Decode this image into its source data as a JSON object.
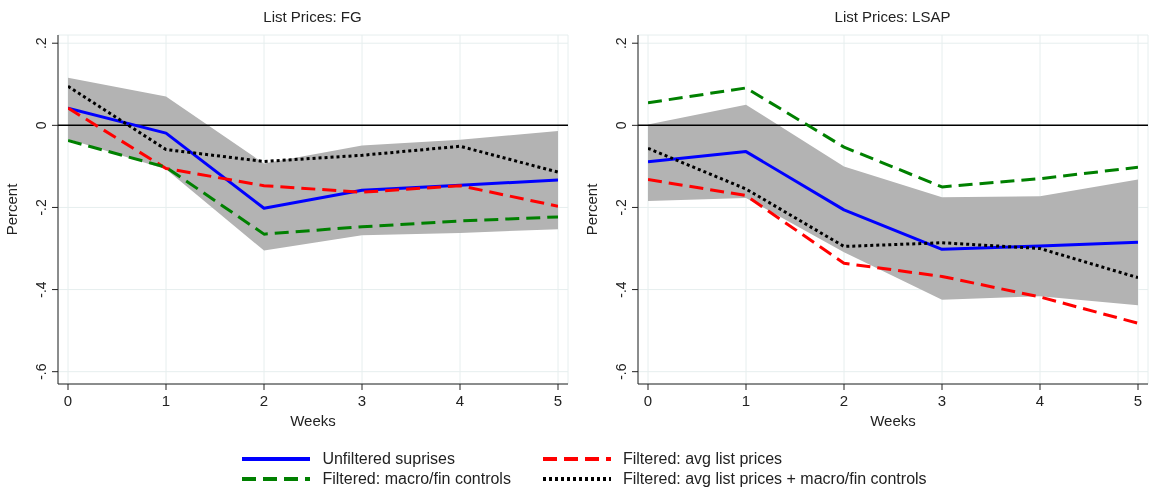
{
  "chart_data": [
    {
      "type": "line",
      "title": "List Prices: FG",
      "xlabel": "Weeks",
      "ylabel": "Percent",
      "x": [
        0,
        1,
        2,
        3,
        4,
        5
      ],
      "xlim": [
        0,
        5
      ],
      "xticks": [
        0,
        1,
        2,
        3,
        4,
        5
      ],
      "ylim": [
        -0.63,
        0.22
      ],
      "yticks": [
        {
          "value": 0.2,
          "label": ".2"
        },
        {
          "value": 0,
          "label": "0"
        },
        {
          "value": -0.2,
          "label": "-.2"
        },
        {
          "value": -0.4,
          "label": "-.4"
        },
        {
          "value": -0.6,
          "label": "-.6"
        }
      ],
      "grid": true,
      "legend": "bottom",
      "ref_lines": [
        {
          "axis": "y",
          "value": 0,
          "color": "#000000"
        }
      ],
      "series": [
        {
          "name": "Unfiltered suprises",
          "color": "#0000ff",
          "line_style": "solid",
          "values": [
            0.042,
            -0.019,
            -0.202,
            -0.158,
            -0.146,
            -0.133
          ],
          "lower": [
            -0.033,
            -0.107,
            -0.305,
            -0.268,
            -0.262,
            -0.253
          ],
          "upper": [
            0.116,
            0.07,
            -0.093,
            -0.049,
            -0.035,
            -0.014
          ]
        },
        {
          "name": "Filtered: avg list prices",
          "color": "#ff0000",
          "line_style": "dashed",
          "values": [
            0.042,
            -0.105,
            -0.147,
            -0.163,
            -0.147,
            -0.197
          ]
        },
        {
          "name": "Filtered: macro/fin controls",
          "color": "#008000",
          "line_style": "dashed",
          "values": [
            -0.037,
            -0.102,
            -0.265,
            -0.247,
            -0.233,
            -0.223
          ]
        },
        {
          "name": "Filtered: avg list prices + macro/fin controls",
          "color": "#000000",
          "line_style": "dotted",
          "values": [
            0.095,
            -0.059,
            -0.088,
            -0.073,
            -0.051,
            -0.114
          ]
        }
      ]
    },
    {
      "type": "line",
      "title": "List Prices: LSAP",
      "xlabel": "Weeks",
      "ylabel": "Percent",
      "x": [
        0,
        1,
        2,
        3,
        4,
        5
      ],
      "xlim": [
        0,
        5
      ],
      "xticks": [
        0,
        1,
        2,
        3,
        4,
        5
      ],
      "ylim": [
        -0.63,
        0.22
      ],
      "yticks": [
        {
          "value": 0.2,
          "label": ".2"
        },
        {
          "value": 0,
          "label": "0"
        },
        {
          "value": -0.2,
          "label": "-.2"
        },
        {
          "value": -0.4,
          "label": "-.4"
        },
        {
          "value": -0.6,
          "label": "-.6"
        }
      ],
      "grid": true,
      "ref_lines": [
        {
          "axis": "y",
          "value": 0,
          "color": "#000000"
        }
      ],
      "series": [
        {
          "color": "#0000ff",
          "line_style": "solid",
          "values": [
            -0.089,
            -0.064,
            -0.206,
            -0.302,
            -0.294,
            -0.285
          ],
          "lower": [
            -0.184,
            -0.177,
            -0.309,
            -0.425,
            -0.416,
            -0.438
          ],
          "upper": [
            0.002,
            0.05,
            -0.1,
            -0.175,
            -0.173,
            -0.132
          ]
        },
        {
          "color": "#ff0000",
          "line_style": "dashed",
          "values": [
            -0.132,
            -0.171,
            -0.336,
            -0.368,
            -0.418,
            -0.482
          ]
        },
        {
          "color": "#008000",
          "line_style": "dashed",
          "values": [
            0.055,
            0.091,
            -0.053,
            -0.15,
            -0.13,
            -0.102
          ]
        },
        {
          "color": "#000000",
          "line_style": "dotted",
          "values": [
            -0.056,
            -0.155,
            -0.295,
            -0.286,
            -0.3,
            -0.371
          ]
        }
      ]
    }
  ]
}
